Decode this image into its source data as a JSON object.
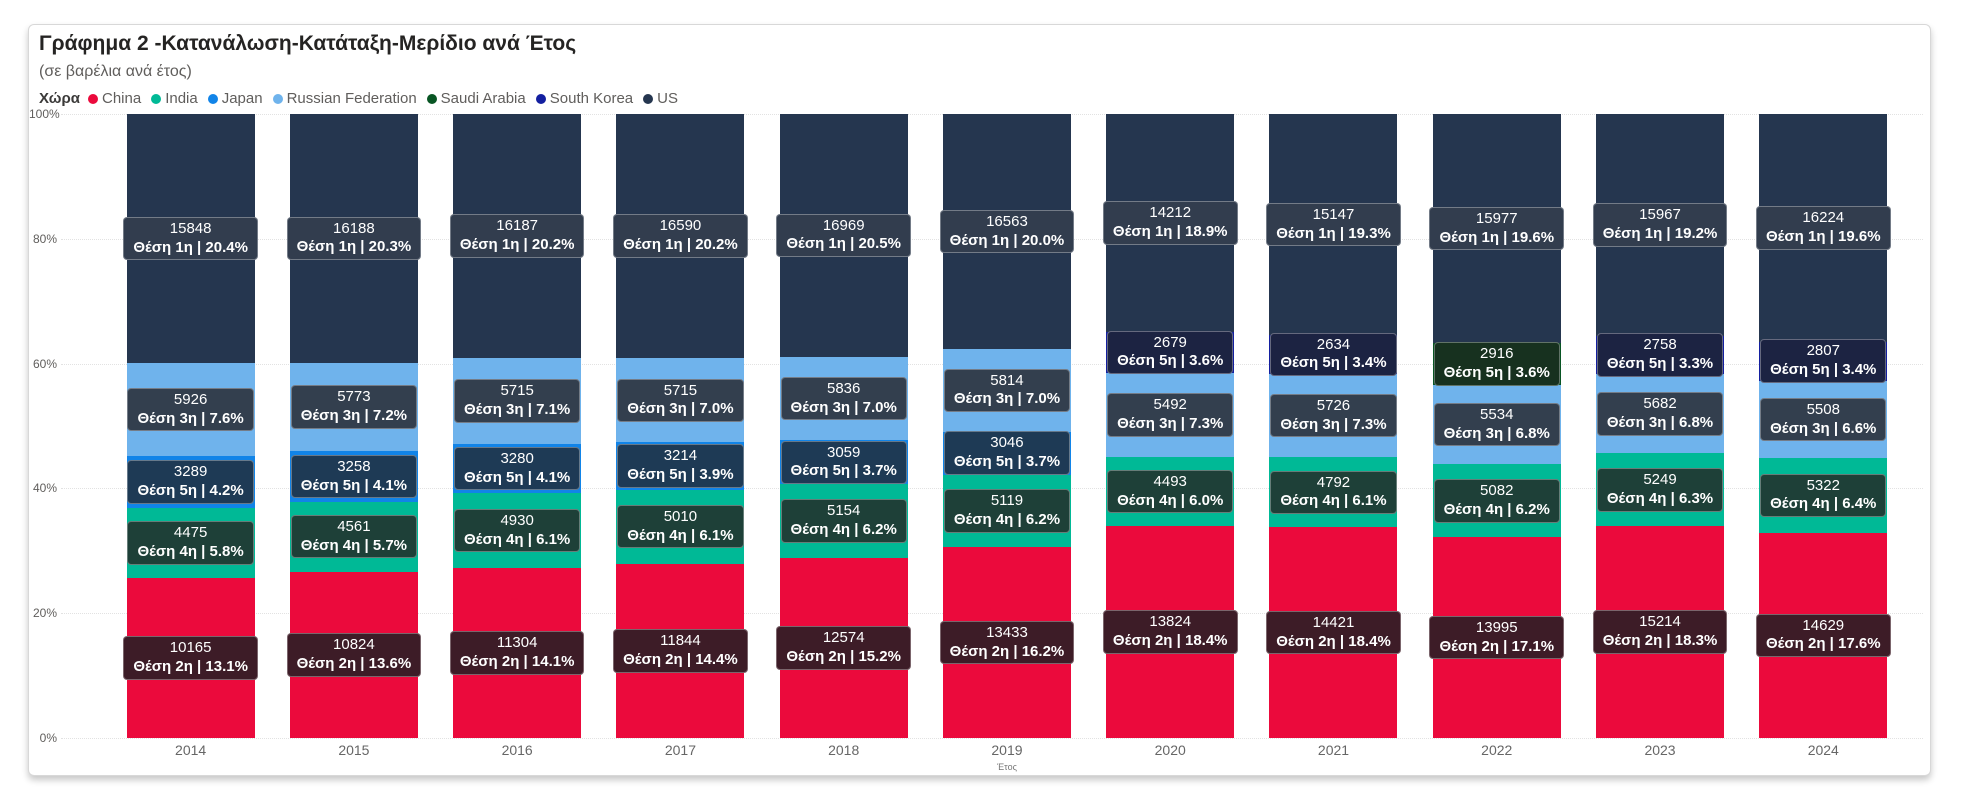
{
  "card": {
    "title": "Γράφημα 2 -Κατανάλωση-Κατάταξη-Μερίδιο ανά Έτος",
    "subtitle": "(σε βαρέλια ανά έτος)"
  },
  "legend": {
    "title": "Χώρα",
    "items": [
      {
        "label": "China",
        "color": "#EB0A3C"
      },
      {
        "label": "India",
        "color": "#00B996"
      },
      {
        "label": "Japan",
        "color": "#1184E8"
      },
      {
        "label": "Russian Federation",
        "color": "#6FB3EC"
      },
      {
        "label": "Saudi Arabia",
        "color": "#085523"
      },
      {
        "label": "South Korea",
        "color": "#131FA0"
      },
      {
        "label": "US",
        "color": "#25364F"
      }
    ]
  },
  "colors": {
    "China": {
      "fill": "#EB0A3C",
      "label_bg": "#3D1C27"
    },
    "India": {
      "fill": "#00B996",
      "label_bg": "#1E4038"
    },
    "Japan": {
      "fill": "#1184E8",
      "label_bg": "#1E3A55"
    },
    "Russian Federation": {
      "fill": "#6FB3EC",
      "label_bg": "#333F4E"
    },
    "Saudi Arabia": {
      "fill": "#085523",
      "label_bg": "#17311F"
    },
    "South Korea": {
      "fill": "#131FA0",
      "label_bg": "#1C2342"
    },
    "US": {
      "fill": "#25364F",
      "label_bg": "#323D4E"
    }
  },
  "chart_data": {
    "type": "bar",
    "variant": "100%-stacked-column",
    "title": "Γράφημα 2 -Κατανάλωση-Κατάταξη-Μερίδιο ανά Έτος",
    "subtitle": "(σε βαρέλια ανά έτος)",
    "xlabel": "Έτος",
    "ylabel": "",
    "y_ticks": [
      "100%",
      "80%",
      "60%",
      "40%",
      "20%",
      "0%"
    ],
    "grid": "dotted-horizontal",
    "legend_position": "top",
    "categories": [
      "2014",
      "2015",
      "2016",
      "2017",
      "2018",
      "2019",
      "2020",
      "2021",
      "2022",
      "2023",
      "2024"
    ],
    "segment_order_note": "segments listed top-to-bottom in each column; stacking bottom-to-top is alphabetical by country",
    "years": [
      {
        "year": "2014",
        "segments": [
          {
            "country": "US",
            "value": 15848,
            "rank": "Θέση 1η",
            "share": "20.4%"
          },
          {
            "country": "Russian Federation",
            "value": 5926,
            "rank": "Θέση 3η",
            "share": "7.6%"
          },
          {
            "country": "Japan",
            "value": 3289,
            "rank": "Θέση 5η",
            "share": "4.2%"
          },
          {
            "country": "India",
            "value": 4475,
            "rank": "Θέση 4η",
            "share": "5.8%"
          },
          {
            "country": "China",
            "value": 10165,
            "rank": "Θέση 2η",
            "share": "13.1%"
          }
        ]
      },
      {
        "year": "2015",
        "segments": [
          {
            "country": "US",
            "value": 16188,
            "rank": "Θέση 1η",
            "share": "20.3%"
          },
          {
            "country": "Russian Federation",
            "value": 5773,
            "rank": "Θέση 3η",
            "share": "7.2%"
          },
          {
            "country": "Japan",
            "value": 3258,
            "rank": "Θέση 5η",
            "share": "4.1%"
          },
          {
            "country": "India",
            "value": 4561,
            "rank": "Θέση 4η",
            "share": "5.7%"
          },
          {
            "country": "China",
            "value": 10824,
            "rank": "Θέση 2η",
            "share": "13.6%"
          }
        ]
      },
      {
        "year": "2016",
        "segments": [
          {
            "country": "US",
            "value": 16187,
            "rank": "Θέση 1η",
            "share": "20.2%"
          },
          {
            "country": "Russian Federation",
            "value": 5715,
            "rank": "Θέση 3η",
            "share": "7.1%"
          },
          {
            "country": "Japan",
            "value": 3280,
            "rank": "Θέση 5η",
            "share": "4.1%"
          },
          {
            "country": "India",
            "value": 4930,
            "rank": "Θέση 4η",
            "share": "6.1%"
          },
          {
            "country": "China",
            "value": 11304,
            "rank": "Θέση 2η",
            "share": "14.1%"
          }
        ]
      },
      {
        "year": "2017",
        "segments": [
          {
            "country": "US",
            "value": 16590,
            "rank": "Θέση 1η",
            "share": "20.2%"
          },
          {
            "country": "Russian Federation",
            "value": 5715,
            "rank": "Θέση 3η",
            "share": "7.0%"
          },
          {
            "country": "Japan",
            "value": 3214,
            "rank": "Θέση 5η",
            "share": "3.9%"
          },
          {
            "country": "India",
            "value": 5010,
            "rank": "Θέση 4η",
            "share": "6.1%"
          },
          {
            "country": "China",
            "value": 11844,
            "rank": "Θέση 2η",
            "share": "14.4%"
          }
        ]
      },
      {
        "year": "2018",
        "segments": [
          {
            "country": "US",
            "value": 16969,
            "rank": "Θέση 1η",
            "share": "20.5%"
          },
          {
            "country": "Russian Federation",
            "value": 5836,
            "rank": "Θέση 3η",
            "share": "7.0%"
          },
          {
            "country": "Japan",
            "value": 3059,
            "rank": "Θέση 5η",
            "share": "3.7%"
          },
          {
            "country": "India",
            "value": 5154,
            "rank": "Θέση 4η",
            "share": "6.2%"
          },
          {
            "country": "China",
            "value": 12574,
            "rank": "Θέση 2η",
            "share": "15.2%"
          }
        ]
      },
      {
        "year": "2019",
        "segments": [
          {
            "country": "US",
            "value": 16563,
            "rank": "Θέση 1η",
            "share": "20.0%"
          },
          {
            "country": "Russian Federation",
            "value": 5814,
            "rank": "Θέση 3η",
            "share": "7.0%"
          },
          {
            "country": "Japan",
            "value": 3046,
            "rank": "Θέση 5η",
            "share": "3.7%"
          },
          {
            "country": "India",
            "value": 5119,
            "rank": "Θέση 4η",
            "share": "6.2%"
          },
          {
            "country": "China",
            "value": 13433,
            "rank": "Θέση 2η",
            "share": "16.2%"
          }
        ]
      },
      {
        "year": "2020",
        "segments": [
          {
            "country": "US",
            "value": 14212,
            "rank": "Θέση 1η",
            "share": "18.9%"
          },
          {
            "country": "South Korea",
            "value": 2679,
            "rank": "Θέση 5η",
            "share": "3.6%"
          },
          {
            "country": "Russian Federation",
            "value": 5492,
            "rank": "Θέση 3η",
            "share": "7.3%"
          },
          {
            "country": "India",
            "value": 4493,
            "rank": "Θέση 4η",
            "share": "6.0%"
          },
          {
            "country": "China",
            "value": 13824,
            "rank": "Θέση 2η",
            "share": "18.4%"
          }
        ]
      },
      {
        "year": "2021",
        "segments": [
          {
            "country": "US",
            "value": 15147,
            "rank": "Θέση 1η",
            "share": "19.3%"
          },
          {
            "country": "South Korea",
            "value": 2634,
            "rank": "Θέση 5η",
            "share": "3.4%"
          },
          {
            "country": "Russian Federation",
            "value": 5726,
            "rank": "Θέση 3η",
            "share": "7.3%"
          },
          {
            "country": "India",
            "value": 4792,
            "rank": "Θέση 4η",
            "share": "6.1%"
          },
          {
            "country": "China",
            "value": 14421,
            "rank": "Θέση 2η",
            "share": "18.4%"
          }
        ]
      },
      {
        "year": "2022",
        "segments": [
          {
            "country": "US",
            "value": 15977,
            "rank": "Θέση 1η",
            "share": "19.6%"
          },
          {
            "country": "Saudi Arabia",
            "value": 2916,
            "rank": "Θέση 5η",
            "share": "3.6%"
          },
          {
            "country": "Russian Federation",
            "value": 5534,
            "rank": "Θέση 3η",
            "share": "6.8%"
          },
          {
            "country": "India",
            "value": 5082,
            "rank": "Θέση 4η",
            "share": "6.2%"
          },
          {
            "country": "China",
            "value": 13995,
            "rank": "Θέση 2η",
            "share": "17.1%"
          }
        ]
      },
      {
        "year": "2023",
        "segments": [
          {
            "country": "US",
            "value": 15967,
            "rank": "Θέση 1η",
            "share": "19.2%"
          },
          {
            "country": "South Korea",
            "value": 2758,
            "rank": "Θέση 5η",
            "share": "3.3%"
          },
          {
            "country": "Russian Federation",
            "value": 5682,
            "rank": "Θέση 3η",
            "share": "6.8%"
          },
          {
            "country": "India",
            "value": 5249,
            "rank": "Θέση 4η",
            "share": "6.3%"
          },
          {
            "country": "China",
            "value": 15214,
            "rank": "Θέση 2η",
            "share": "18.3%"
          }
        ]
      },
      {
        "year": "2024",
        "segments": [
          {
            "country": "US",
            "value": 16224,
            "rank": "Θέση 1η",
            "share": "19.6%"
          },
          {
            "country": "South Korea",
            "value": 2807,
            "rank": "Θέση 5η",
            "share": "3.4%"
          },
          {
            "country": "Russian Federation",
            "value": 5508,
            "rank": "Θέση 3η",
            "share": "6.6%"
          },
          {
            "country": "India",
            "value": 5322,
            "rank": "Θέση 4η",
            "share": "6.4%"
          },
          {
            "country": "China",
            "value": 14629,
            "rank": "Θέση 2η",
            "share": "17.6%"
          }
        ]
      }
    ]
  }
}
